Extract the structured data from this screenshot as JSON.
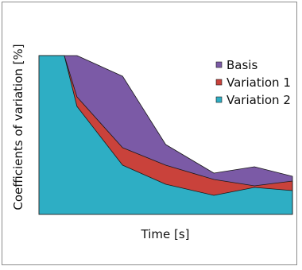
{
  "chart_data": {
    "type": "area",
    "title": "",
    "xlabel": "Time [s]",
    "ylabel": "Coefficients of variation [%]",
    "grid": false,
    "legend_position": "top-right",
    "xlim": [
      0,
      1
    ],
    "ylim": [
      0,
      1
    ],
    "x": [
      0.0,
      0.1,
      0.15,
      0.33,
      0.5,
      0.69,
      0.85,
      1.0
    ],
    "series": [
      {
        "name": "Basis",
        "color": "#7b5aa6",
        "values": [
          1.0,
          1.0,
          1.0,
          0.87,
          0.44,
          0.26,
          0.3,
          0.24
        ]
      },
      {
        "name": "Variation 1",
        "color": "#c9423b",
        "values": [
          1.0,
          1.0,
          0.74,
          0.42,
          0.31,
          0.22,
          0.18,
          0.21
        ]
      },
      {
        "name": "Variation 2",
        "color": "#2eaec4",
        "values": [
          1.0,
          1.0,
          0.68,
          0.31,
          0.19,
          0.12,
          0.17,
          0.15
        ]
      }
    ]
  }
}
